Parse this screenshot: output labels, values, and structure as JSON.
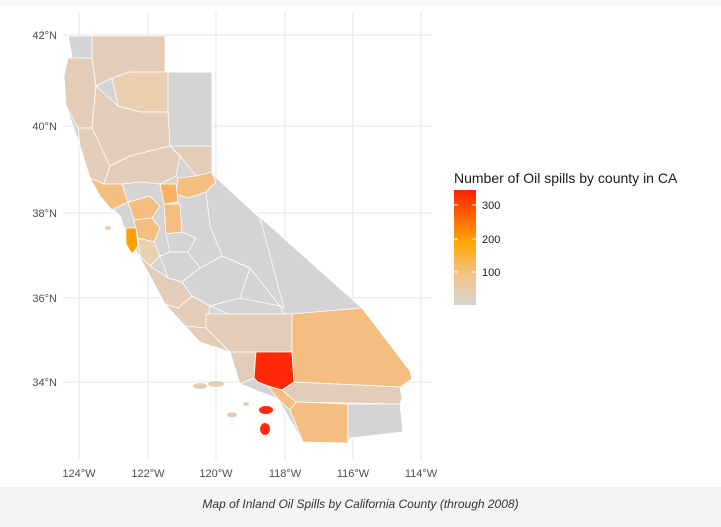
{
  "map": {
    "axes": {
      "y_ticks": [
        "42°N",
        "40°N",
        "38°N",
        "36°N",
        "34°N"
      ],
      "x_ticks": [
        "124°W",
        "122°W",
        "120°W",
        "118°W",
        "116°W",
        "114°W"
      ]
    },
    "legend": {
      "title": "Number of Oil spills by county in CA",
      "ticks": [
        "300",
        "200",
        "100"
      ],
      "min_color": "#d3d3d3",
      "mid_color": "#ffa500",
      "max_color": "#ff2200"
    },
    "colors": {
      "background_land": "#d4d4d4",
      "light_tan": "#e3cdb8",
      "tan": "#ead0b0",
      "light_orange": "#f4be80",
      "orange": "#f8a63a",
      "dark_orange": "#ffa000",
      "red": "#ff2a0a"
    }
  },
  "caption": "Map of Inland Oil Spills by California County (through 2008)"
}
